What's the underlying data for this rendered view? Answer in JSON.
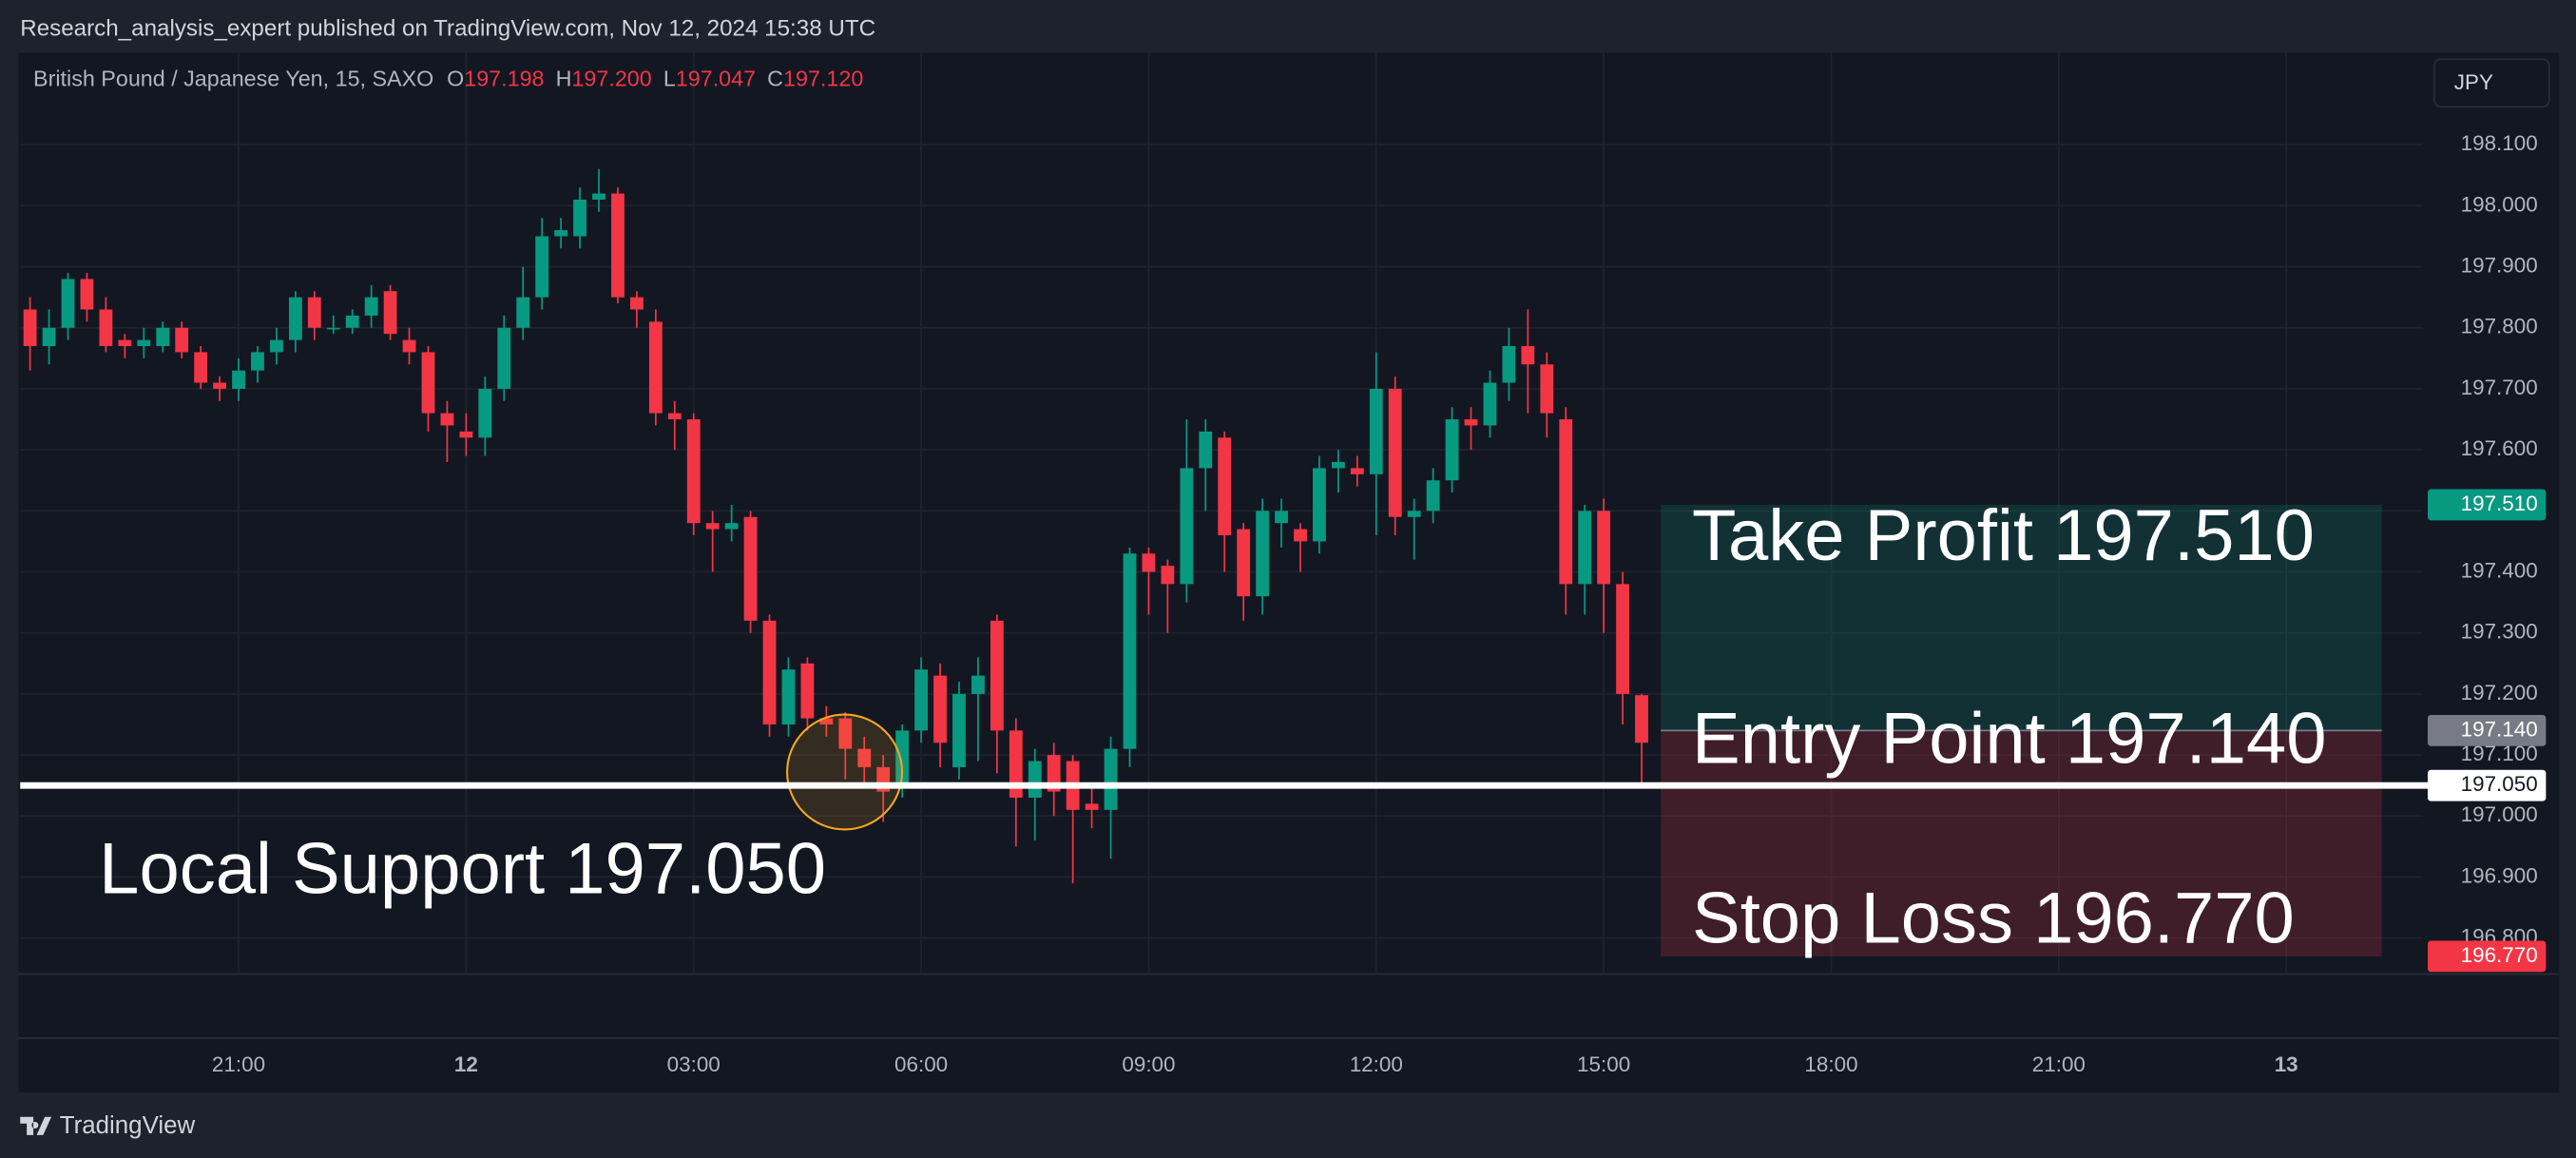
{
  "header": {
    "text": "Research_analysis_expert published on TradingView.com, Nov 12, 2024 15:38 UTC"
  },
  "toolbar": {
    "currency": "JPY"
  },
  "footer": {
    "brand": "TradingView"
  },
  "chart_data": {
    "type": "candlestick",
    "legend": {
      "symbol": "British Pound / Japanese Yen, 15, SAXO",
      "fields": [
        {
          "key": "O",
          "value": "197.198"
        },
        {
          "key": "H",
          "value": "197.200"
        },
        {
          "key": "L",
          "value": "197.047"
        },
        {
          "key": "C",
          "value": "197.120"
        }
      ]
    },
    "up_color": "#089981",
    "down_color": "#f23645",
    "grid": true,
    "x": [
      18.25,
      18.5,
      18.75,
      19,
      19.25,
      19.5,
      19.75,
      20,
      20.25,
      20.5,
      20.75,
      21,
      21.25,
      21.5,
      21.75,
      22,
      22.25,
      22.5,
      22.75,
      23,
      23.25,
      23.5,
      23.75,
      24,
      24.25,
      24.5,
      24.75,
      25,
      25.25,
      25.5,
      25.75,
      26,
      26.25,
      26.5,
      26.75,
      27,
      27.25,
      27.5,
      27.75,
      28,
      28.25,
      28.5,
      28.75,
      29,
      29.25,
      29.5,
      29.75,
      30,
      30.25,
      30.5,
      30.75,
      31,
      31.25,
      31.5,
      31.75,
      32,
      32.25,
      32.5,
      32.75,
      33,
      33.25,
      33.5,
      33.75,
      34,
      34.25,
      34.5,
      34.75,
      35,
      35.25,
      35.5,
      35.75,
      36,
      36.25,
      36.5,
      36.75,
      37,
      37.25,
      37.5,
      37.75,
      38,
      38.25,
      38.5,
      38.75,
      39,
      39.25,
      39.5
    ],
    "open": [
      197.83,
      197.77,
      197.8,
      197.88,
      197.83,
      197.78,
      197.77,
      197.77,
      197.8,
      197.76,
      197.71,
      197.7,
      197.73,
      197.76,
      197.78,
      197.85,
      197.8,
      197.8,
      197.82,
      197.86,
      197.78,
      197.76,
      197.66,
      197.63,
      197.62,
      197.7,
      197.8,
      197.85,
      197.95,
      197.95,
      198.01,
      198.02,
      197.85,
      197.81,
      197.66,
      197.65,
      197.48,
      197.47,
      197.49,
      197.32,
      197.15,
      197.25,
      197.16,
      197.16,
      197.11,
      197.08,
      197.05,
      197.14,
      197.23,
      197.08,
      197.2,
      197.32,
      197.14,
      197.03,
      197.1,
      197.09,
      197.02,
      197.01,
      197.11,
      197.43,
      197.41,
      197.38,
      197.57,
      197.62,
      197.47,
      197.36,
      197.48,
      197.47,
      197.45,
      197.57,
      197.57,
      197.56,
      197.7,
      197.49,
      197.5,
      197.55,
      197.65,
      197.64,
      197.71,
      197.77,
      197.74,
      197.65,
      197.38,
      197.5,
      197.38,
      197.198
    ],
    "high": [
      197.85,
      197.83,
      197.89,
      197.89,
      197.85,
      197.79,
      197.8,
      197.81,
      197.81,
      197.77,
      197.72,
      197.75,
      197.77,
      197.8,
      197.86,
      197.86,
      197.82,
      197.83,
      197.87,
      197.87,
      197.8,
      197.77,
      197.68,
      197.66,
      197.72,
      197.82,
      197.9,
      197.98,
      197.98,
      198.03,
      198.06,
      198.03,
      197.86,
      197.83,
      197.68,
      197.66,
      197.5,
      197.51,
      197.5,
      197.33,
      197.26,
      197.26,
      197.18,
      197.17,
      197.13,
      197.1,
      197.15,
      197.26,
      197.25,
      197.22,
      197.26,
      197.33,
      197.16,
      197.11,
      197.12,
      197.1,
      197.05,
      197.13,
      197.44,
      197.44,
      197.42,
      197.65,
      197.65,
      197.63,
      197.48,
      197.52,
      197.52,
      197.48,
      197.59,
      197.6,
      197.59,
      197.76,
      197.72,
      197.52,
      197.57,
      197.67,
      197.67,
      197.73,
      197.8,
      197.83,
      197.76,
      197.67,
      197.51,
      197.52,
      197.4,
      197.2
    ],
    "low": [
      197.73,
      197.74,
      197.78,
      197.81,
      197.76,
      197.75,
      197.75,
      197.76,
      197.75,
      197.7,
      197.68,
      197.68,
      197.71,
      197.74,
      197.76,
      197.78,
      197.79,
      197.79,
      197.8,
      197.78,
      197.74,
      197.63,
      197.58,
      197.59,
      197.59,
      197.68,
      197.78,
      197.83,
      197.93,
      197.93,
      197.99,
      197.84,
      197.8,
      197.64,
      197.6,
      197.46,
      197.4,
      197.45,
      197.3,
      197.13,
      197.13,
      197.14,
      197.13,
      197.06,
      197.05,
      196.99,
      197.03,
      197.12,
      197.08,
      197.06,
      197.09,
      197.07,
      196.95,
      196.96,
      197.0,
      196.89,
      196.98,
      196.93,
      197.08,
      197.33,
      197.3,
      197.35,
      197.5,
      197.4,
      197.32,
      197.33,
      197.44,
      197.4,
      197.43,
      197.53,
      197.54,
      197.46,
      197.46,
      197.42,
      197.48,
      197.53,
      197.6,
      197.62,
      197.68,
      197.66,
      197.62,
      197.33,
      197.33,
      197.3,
      197.15,
      197.047
    ],
    "close": [
      197.77,
      197.8,
      197.88,
      197.83,
      197.77,
      197.77,
      197.78,
      197.8,
      197.76,
      197.71,
      197.7,
      197.73,
      197.76,
      197.78,
      197.85,
      197.8,
      197.8,
      197.82,
      197.85,
      197.79,
      197.76,
      197.66,
      197.64,
      197.62,
      197.7,
      197.8,
      197.85,
      197.95,
      197.96,
      198.01,
      198.02,
      197.85,
      197.83,
      197.66,
      197.65,
      197.48,
      197.47,
      197.48,
      197.32,
      197.15,
      197.24,
      197.16,
      197.15,
      197.11,
      197.08,
      197.04,
      197.14,
      197.24,
      197.12,
      197.2,
      197.23,
      197.14,
      197.03,
      197.09,
      197.04,
      197.01,
      197.01,
      197.11,
      197.43,
      197.4,
      197.38,
      197.57,
      197.63,
      197.46,
      197.36,
      197.5,
      197.5,
      197.45,
      197.57,
      197.58,
      197.56,
      197.7,
      197.49,
      197.5,
      197.55,
      197.65,
      197.64,
      197.71,
      197.77,
      197.74,
      197.66,
      197.38,
      197.5,
      197.38,
      197.2,
      197.12
    ],
    "xlim": [
      18.12,
      49.8
    ],
    "xticks": [
      {
        "value": 21,
        "label": "21:00"
      },
      {
        "value": 24,
        "label": "12"
      },
      {
        "value": 27,
        "label": "03:00"
      },
      {
        "value": 30,
        "label": "06:00"
      },
      {
        "value": 33,
        "label": "09:00"
      },
      {
        "value": 36,
        "label": "12:00"
      },
      {
        "value": 39,
        "label": "15:00"
      },
      {
        "value": 42,
        "label": "18:00"
      },
      {
        "value": 45,
        "label": "21:00"
      },
      {
        "value": 48,
        "label": "13"
      }
    ],
    "ylim": [
      196.741,
      198.251
    ],
    "yticks": [
      {
        "value": 198.1,
        "label": "198.100"
      },
      {
        "value": 198.0,
        "label": "198.000"
      },
      {
        "value": 197.9,
        "label": "197.900"
      },
      {
        "value": 197.8,
        "label": "197.800"
      },
      {
        "value": 197.7,
        "label": "197.700"
      },
      {
        "value": 197.6,
        "label": "197.600"
      },
      {
        "value": 197.5,
        "label": "197.500"
      },
      {
        "value": 197.4,
        "label": "197.400"
      },
      {
        "value": 197.3,
        "label": "197.300"
      },
      {
        "value": 197.2,
        "label": "197.200"
      },
      {
        "value": 197.1,
        "label": "197.100"
      },
      {
        "value": 197.0,
        "label": "197.000"
      },
      {
        "value": 196.9,
        "label": "196.900"
      },
      {
        "value": 196.8,
        "label": "196.800"
      }
    ],
    "take_profit": {
      "text": "Take Profit 197.510",
      "value": 197.51,
      "label": "197.510"
    },
    "entry": {
      "text": "Entry Point 197.140",
      "value": 197.14,
      "label": "197.140"
    },
    "stop_loss": {
      "text": "Stop Loss 196.770",
      "value": 196.77,
      "label": "196.770"
    },
    "support": {
      "text": "Local Support 197.050",
      "value": 197.05,
      "label": "197.050"
    }
  }
}
